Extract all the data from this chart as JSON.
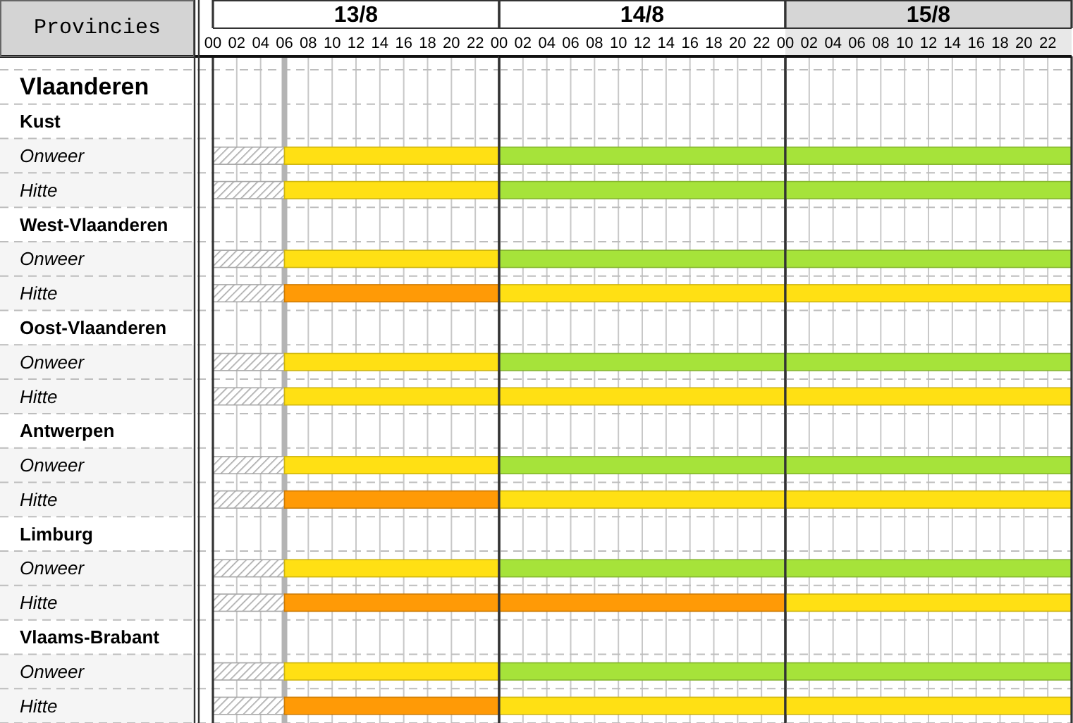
{
  "chart_data": [
    {
      "type": "bar",
      "orientation": "horizontal",
      "stacked": true,
      "title": "13/8",
      "ylabel": "Provincies",
      "categories": [
        "Vlaanderen",
        "Kust",
        "Onweer",
        "Hitte",
        "West-Vlaanderen",
        "Onweer",
        "Hitte",
        "Oost-Vlaanderen",
        "Onweer",
        "Hitte",
        "Antwerpen",
        "Onweer",
        "Hitte",
        "Limburg",
        "Onweer",
        "Hitte",
        "Vlaams-Brabant",
        "Onweer",
        "Hitte"
      ],
      "series": [
        {
          "color": "#a8a8a8",
          "values": [
            null,
            null,
            6,
            6,
            null,
            6,
            6,
            null,
            6,
            6,
            null,
            6,
            6,
            null,
            6,
            6,
            null,
            6,
            6
          ]
        },
        {
          "color": "#ff9a06",
          "values": [
            null,
            null,
            null,
            null,
            null,
            null,
            18,
            null,
            null,
            null,
            null,
            null,
            18,
            null,
            null,
            18,
            null,
            null,
            18
          ]
        },
        {
          "color": "#ffe014",
          "values": [
            null,
            null,
            18,
            18,
            null,
            18,
            null,
            null,
            18,
            18,
            null,
            18,
            null,
            null,
            18,
            null,
            null,
            18,
            null
          ]
        }
      ],
      "xlim": [
        0,
        24
      ],
      "xticks": [
        {
          "value": 0,
          "label": "00"
        },
        {
          "value": 2,
          "label": "02"
        },
        {
          "value": 4,
          "label": "04"
        },
        {
          "value": 6,
          "label": "06"
        },
        {
          "value": 8,
          "label": "08"
        },
        10,
        12,
        14,
        16,
        18,
        20,
        22
      ],
      "ref_lines": [
        {
          "axis": "x",
          "value": 6,
          "color": "#b4b4b4"
        }
      ],
      "grid": true
    },
    {
      "type": "bar",
      "orientation": "horizontal",
      "stacked": true,
      "title": "14/8",
      "tick_labels": "x",
      "categories": [
        null,
        null,
        null,
        null,
        null,
        null,
        null,
        null,
        null,
        null,
        null,
        null,
        null,
        null,
        null,
        null,
        null,
        null,
        null
      ],
      "series": [
        {
          "color": "#ff9a06",
          "values": [
            null,
            null,
            null,
            null,
            null,
            null,
            null,
            null,
            null,
            null,
            null,
            null,
            null,
            null,
            null,
            24,
            null,
            null,
            null
          ]
        },
        {
          "color": "#ffe014",
          "values": [
            null,
            null,
            null,
            null,
            null,
            null,
            24,
            null,
            null,
            24,
            null,
            null,
            24,
            null,
            null,
            null,
            null,
            null,
            24
          ]
        },
        {
          "color": "#a6e33a",
          "values": [
            null,
            null,
            24,
            24,
            null,
            24,
            null,
            null,
            24,
            null,
            null,
            24,
            null,
            null,
            24,
            null,
            null,
            24,
            null
          ]
        }
      ],
      "xlim": [
        0,
        24
      ],
      "xticks": [
        {
          "value": 0,
          "label": "00"
        },
        {
          "value": 2,
          "label": "02"
        },
        {
          "value": 4,
          "label": "04"
        },
        {
          "value": 6,
          "label": "06"
        },
        {
          "value": 8,
          "label": "08"
        },
        10,
        12,
        14,
        16,
        18,
        20,
        22
      ],
      "grid": true
    },
    {
      "type": "bar",
      "orientation": "horizontal",
      "stacked": true,
      "title": "15/8",
      "tick_labels": "x",
      "categories": [
        null,
        null,
        null,
        null,
        null,
        null,
        null,
        null,
        null,
        null,
        null,
        null,
        null,
        null,
        null,
        null,
        null,
        null,
        null
      ],
      "series": [
        {
          "color": "#ffe014",
          "values": [
            null,
            null,
            null,
            null,
            null,
            null,
            24,
            null,
            null,
            24,
            null,
            null,
            24,
            null,
            null,
            24,
            null,
            null,
            24
          ]
        },
        {
          "color": "#a6e33a",
          "values": [
            null,
            null,
            24,
            24,
            null,
            24,
            null,
            null,
            24,
            null,
            null,
            24,
            null,
            null,
            24,
            null,
            null,
            24,
            null
          ]
        }
      ],
      "xlim": [
        0,
        24
      ],
      "xticks": [
        {
          "value": 0,
          "label": "00"
        },
        {
          "value": 2,
          "label": "02"
        },
        {
          "value": 4,
          "label": "04"
        },
        {
          "value": 6,
          "label": "06"
        },
        {
          "value": 8,
          "label": "08"
        },
        10,
        12,
        14,
        16,
        18,
        20,
        22
      ],
      "grid": true
    }
  ]
}
